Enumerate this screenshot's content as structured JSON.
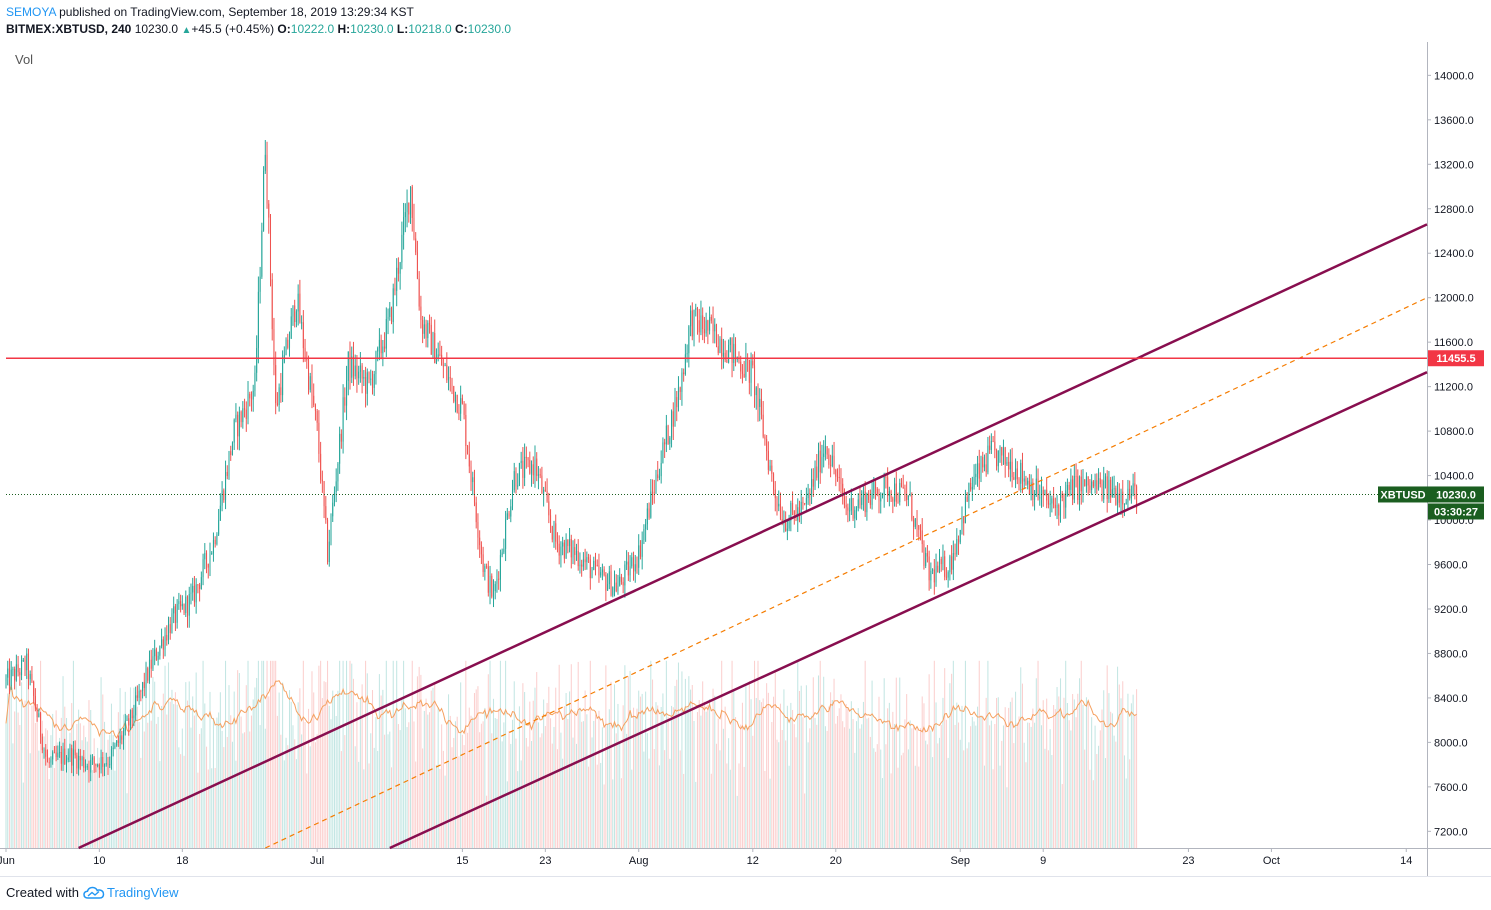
{
  "header": {
    "author": "SEMOYA",
    "published_text": " published on TradingView.com, September 18, 2019 13:29:34 KST",
    "symbol": "BITMEX:XBTUSD, 240",
    "last": "10230.0",
    "change": "+45.5 (+0.45%)",
    "open_label": "O:",
    "open": "10222.0",
    "high_label": "H:",
    "high": "10230.0",
    "low_label": "L:",
    "low": "10218.0",
    "close_label": "C:",
    "close": "10230.0"
  },
  "volume_label": "Vol",
  "footer": {
    "created_with": "Created with",
    "brand": "TradingView"
  },
  "colors": {
    "up": "#26a69a",
    "down": "#ef5350",
    "channel": "#880e4f",
    "midline": "#f57c00",
    "resistance": "#f23645",
    "price_tag": "#1b5e20",
    "volume_ma": "#f5a05f"
  },
  "chart_data": {
    "type": "candlestick",
    "symbol": "XBTUSD",
    "ylim": [
      7050,
      14300
    ],
    "y_ticks": [
      {
        "v": 7200,
        "label": "7200.0"
      },
      {
        "v": 7600,
        "label": "7600.0"
      },
      {
        "v": 8000,
        "label": "8000.0"
      },
      {
        "v": 8400,
        "label": "8400.0"
      },
      {
        "v": 8800,
        "label": "8800.0"
      },
      {
        "v": 9200,
        "label": "9200.0"
      },
      {
        "v": 9600,
        "label": "9600.0"
      },
      {
        "v": 10000,
        "label": "10000.0"
      },
      {
        "v": 10400,
        "label": "10400.0"
      },
      {
        "v": 10800,
        "label": "10800.0"
      },
      {
        "v": 11200,
        "label": "11200.0"
      },
      {
        "v": 11600,
        "label": "11600.0"
      },
      {
        "v": 12000,
        "label": "12000.0"
      },
      {
        "v": 12400,
        "label": "12400.0"
      },
      {
        "v": 12800,
        "label": "12800.0"
      },
      {
        "v": 13200,
        "label": "13200.0"
      },
      {
        "v": 13600,
        "label": "13600.0"
      },
      {
        "v": 14000,
        "label": "14000.0"
      }
    ],
    "x_ticks": [
      {
        "d": "2019-06-01",
        "label": "Jun"
      },
      {
        "d": "2019-06-10",
        "label": "10"
      },
      {
        "d": "2019-06-18",
        "label": "18"
      },
      {
        "d": "2019-07-01",
        "label": "Jul"
      },
      {
        "d": "2019-07-15",
        "label": "15"
      },
      {
        "d": "2019-07-23",
        "label": "23"
      },
      {
        "d": "2019-08-01",
        "label": "Aug"
      },
      {
        "d": "2019-08-12",
        "label": "12"
      },
      {
        "d": "2019-08-20",
        "label": "20"
      },
      {
        "d": "2019-09-01",
        "label": "Sep"
      },
      {
        "d": "2019-09-09",
        "label": "9"
      },
      {
        "d": "2019-09-23",
        "label": "23"
      },
      {
        "d": "2019-10-01",
        "label": "Oct"
      },
      {
        "d": "2019-10-14",
        "label": "14"
      }
    ],
    "x_start": "2019-06-01",
    "x_end": "2019-10-16",
    "closes_daily": [
      {
        "d": "2019-06-01",
        "c": 8550
      },
      {
        "d": "2019-06-03",
        "c": 8700
      },
      {
        "d": "2019-06-05",
        "c": 7800
      },
      {
        "d": "2019-06-07",
        "c": 7900
      },
      {
        "d": "2019-06-09",
        "c": 7800
      },
      {
        "d": "2019-06-11",
        "c": 7850
      },
      {
        "d": "2019-06-13",
        "c": 8200
      },
      {
        "d": "2019-06-15",
        "c": 8700
      },
      {
        "d": "2019-06-17",
        "c": 9100
      },
      {
        "d": "2019-06-19",
        "c": 9300
      },
      {
        "d": "2019-06-21",
        "c": 9800
      },
      {
        "d": "2019-06-23",
        "c": 10800
      },
      {
        "d": "2019-06-25",
        "c": 11200
      },
      {
        "d": "2019-06-26",
        "c": 13400
      },
      {
        "d": "2019-06-27",
        "c": 11000
      },
      {
        "d": "2019-06-29",
        "c": 12000
      },
      {
        "d": "2019-07-01",
        "c": 10800
      },
      {
        "d": "2019-07-02",
        "c": 9700
      },
      {
        "d": "2019-07-04",
        "c": 11400
      },
      {
        "d": "2019-07-06",
        "c": 11200
      },
      {
        "d": "2019-07-08",
        "c": 11800
      },
      {
        "d": "2019-07-10",
        "c": 13000
      },
      {
        "d": "2019-07-11",
        "c": 11800
      },
      {
        "d": "2019-07-13",
        "c": 11400
      },
      {
        "d": "2019-07-15",
        "c": 11000
      },
      {
        "d": "2019-07-17",
        "c": 9600
      },
      {
        "d": "2019-07-18",
        "c": 9300
      },
      {
        "d": "2019-07-20",
        "c": 10400
      },
      {
        "d": "2019-07-22",
        "c": 10500
      },
      {
        "d": "2019-07-24",
        "c": 9800
      },
      {
        "d": "2019-07-26",
        "c": 9700
      },
      {
        "d": "2019-07-28",
        "c": 9500
      },
      {
        "d": "2019-07-30",
        "c": 9400
      },
      {
        "d": "2019-08-01",
        "c": 9700
      },
      {
        "d": "2019-08-03",
        "c": 10500
      },
      {
        "d": "2019-08-05",
        "c": 11200
      },
      {
        "d": "2019-08-06",
        "c": 11800
      },
      {
        "d": "2019-08-08",
        "c": 11700
      },
      {
        "d": "2019-08-10",
        "c": 11500
      },
      {
        "d": "2019-08-12",
        "c": 11300
      },
      {
        "d": "2019-08-14",
        "c": 10300
      },
      {
        "d": "2019-08-15",
        "c": 10000
      },
      {
        "d": "2019-08-17",
        "c": 10100
      },
      {
        "d": "2019-08-19",
        "c": 10700
      },
      {
        "d": "2019-08-21",
        "c": 10100
      },
      {
        "d": "2019-08-23",
        "c": 10200
      },
      {
        "d": "2019-08-25",
        "c": 10300
      },
      {
        "d": "2019-08-27",
        "c": 10200
      },
      {
        "d": "2019-08-29",
        "c": 9500
      },
      {
        "d": "2019-08-31",
        "c": 9600
      },
      {
        "d": "2019-09-02",
        "c": 10300
      },
      {
        "d": "2019-09-04",
        "c": 10600
      },
      {
        "d": "2019-09-06",
        "c": 10500
      },
      {
        "d": "2019-09-08",
        "c": 10300
      },
      {
        "d": "2019-09-10",
        "c": 10100
      },
      {
        "d": "2019-09-12",
        "c": 10300
      },
      {
        "d": "2019-09-14",
        "c": 10300
      },
      {
        "d": "2019-09-16",
        "c": 10250
      },
      {
        "d": "2019-09-18",
        "c": 10230
      }
    ],
    "annotations": {
      "resistance_line": {
        "value": 11455.5,
        "label": "11455.5"
      },
      "last_price_line": {
        "value": 10230,
        "label": "10230.0",
        "symbol_label": "XBTUSD",
        "countdown": "03:30:27"
      },
      "channel_upper": [
        {
          "d": "2019-06-08",
          "v": 7050
        },
        {
          "d": "2019-10-16",
          "v": 12660
        }
      ],
      "channel_mid": [
        {
          "d": "2019-06-26",
          "v": 7050
        },
        {
          "d": "2019-10-16",
          "v": 12000
        }
      ],
      "channel_lower": [
        {
          "d": "2019-07-08",
          "v": 7050
        },
        {
          "d": "2019-10-16",
          "v": 11330
        }
      ]
    },
    "volume": {
      "label": "Vol"
    }
  }
}
